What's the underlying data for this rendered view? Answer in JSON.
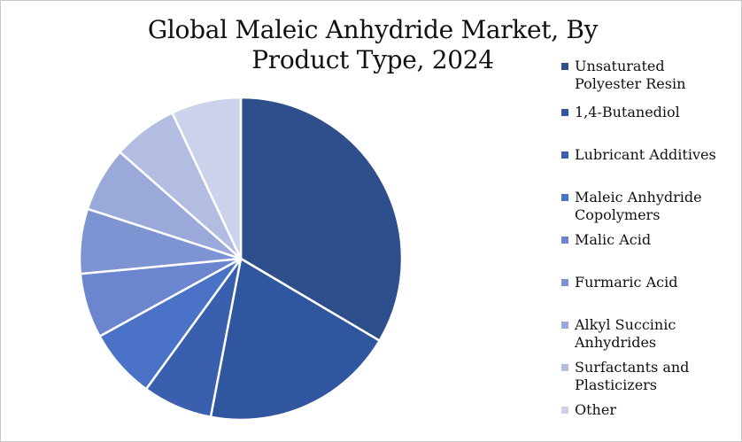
{
  "chart_data": {
    "type": "pie",
    "title": "Global Maleic Anhydride Market, By Product Type, 2024",
    "legend_position": "right",
    "slices": [
      {
        "label": "Unsaturated Polyester Resin",
        "value": 33.5,
        "color": "#2e4e8c"
      },
      {
        "label": "1,4-Butanediol",
        "value": 19.5,
        "color": "#3156a0"
      },
      {
        "label": "Lubricant Additives",
        "value": 7.0,
        "color": "#3a5fae"
      },
      {
        "label": "Maleic Anhydride Copolymers",
        "value": 7.0,
        "color": "#4a72c6"
      },
      {
        "label": "Malic Acid",
        "value": 6.5,
        "color": "#6b86cf"
      },
      {
        "label": "Furmaric Acid",
        "value": 6.5,
        "color": "#7e93d2"
      },
      {
        "label": "Alkyl Succinic Anhydrides",
        "value": 6.5,
        "color": "#9aa9da"
      },
      {
        "label": "Surfactants and Plasticizers",
        "value": 6.5,
        "color": "#b3bde2"
      },
      {
        "label": "Other",
        "value": 7.0,
        "color": "#cdd2ec"
      }
    ]
  }
}
